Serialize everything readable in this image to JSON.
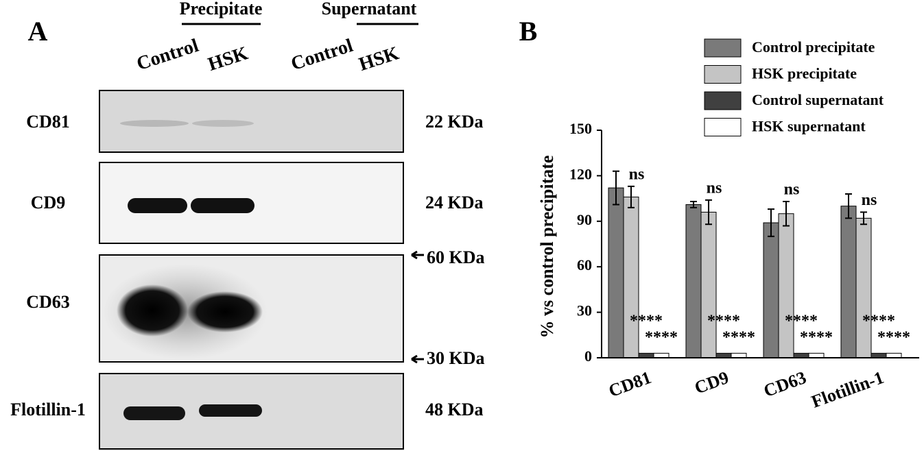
{
  "panel_a": {
    "label": "A",
    "groups": [
      {
        "label": "Precipitate",
        "lanes": [
          "Control",
          "HSK"
        ]
      },
      {
        "label": "Supernatant",
        "lanes": [
          "Control",
          "HSK"
        ]
      }
    ],
    "blots": [
      {
        "protein": "CD81",
        "markers": [
          "22 KDa"
        ]
      },
      {
        "protein": "CD9",
        "markers": [
          "24 KDa"
        ]
      },
      {
        "protein": "CD63",
        "markers": [
          "60 KDa",
          "30 KDa"
        ]
      },
      {
        "protein": "Flotillin-1",
        "markers": [
          "48 KDa"
        ]
      }
    ]
  },
  "panel_b": {
    "label": "B"
  },
  "chart_data": {
    "type": "bar",
    "y_label": "% vs control precipitate",
    "categories": [
      "CD81",
      "CD9",
      "CD63",
      "Flotillin-1"
    ],
    "series": [
      {
        "name": "Control precipitate",
        "color": "#7a7a7a",
        "values": [
          112,
          101,
          89,
          100
        ],
        "errors": [
          11,
          2,
          9,
          8
        ]
      },
      {
        "name": "HSK precipitate",
        "color": "#c4c4c4",
        "values": [
          106,
          96,
          95,
          92
        ],
        "errors": [
          7,
          8,
          8,
          4
        ],
        "annotations": [
          "ns",
          "ns",
          "ns",
          "ns"
        ]
      },
      {
        "name": "Control supernatant",
        "color": "#404040",
        "values": [
          3,
          3,
          3,
          3
        ],
        "annotations": [
          "****",
          "****",
          "****",
          "****"
        ]
      },
      {
        "name": "HSK supernatant",
        "color": "#ffffff",
        "values": [
          3,
          3,
          3,
          3
        ],
        "annotations": [
          "****",
          "****",
          "****",
          "****"
        ]
      }
    ],
    "ylim": [
      0,
      150
    ],
    "yticks": [
      0,
      30,
      60,
      90,
      120,
      150
    ],
    "legend": "top-right"
  }
}
